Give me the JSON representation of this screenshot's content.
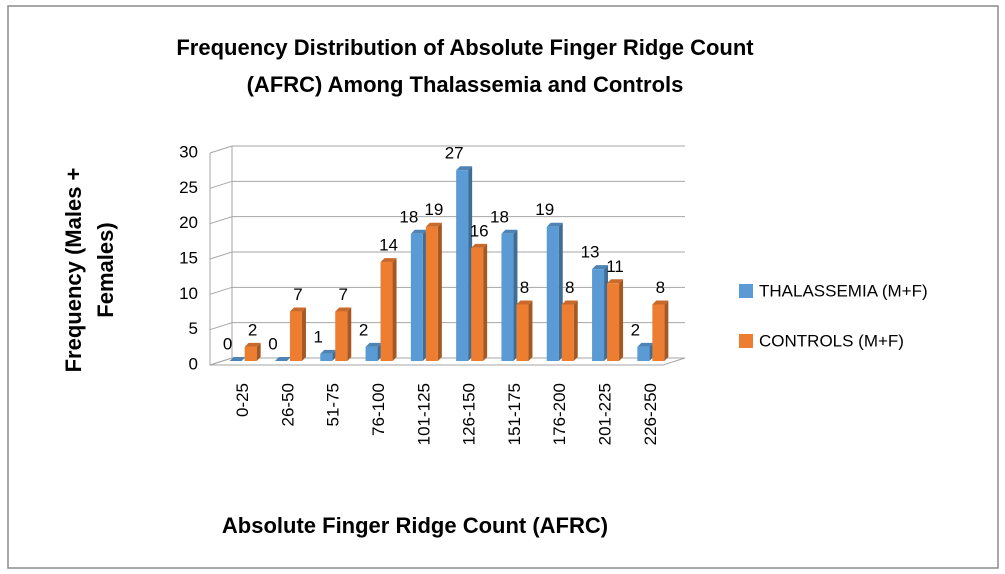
{
  "chart_data": {
    "type": "bar",
    "title": [
      "Frequency Distribution of Absolute Finger Ridge Count",
      "(AFRC) Among Thalassemia and Controls"
    ],
    "x_label": "Absolute Finger Ridge Count (AFRC)",
    "y_label": [
      "Frequency (Males +",
      "Females)"
    ],
    "categories": [
      "0-25",
      "26-50",
      "51-75",
      "76-100",
      "101-125",
      "126-150",
      "151-175",
      "176-200",
      "201-225",
      "226-250"
    ],
    "series": [
      {
        "name": "THALASSEMIA (M+F)",
        "color": "#5b9bd5",
        "values": [
          0,
          0,
          1,
          2,
          18,
          27,
          18,
          19,
          13,
          2
        ]
      },
      {
        "name": "CONTROLS (M+F)",
        "color": "#ed7d31",
        "values": [
          2,
          7,
          7,
          14,
          19,
          16,
          8,
          8,
          11,
          8
        ]
      }
    ],
    "ylim": [
      0,
      30
    ],
    "yticks": [
      0,
      5,
      10,
      15,
      20,
      25,
      30
    ],
    "grid": true,
    "legend": "right"
  }
}
